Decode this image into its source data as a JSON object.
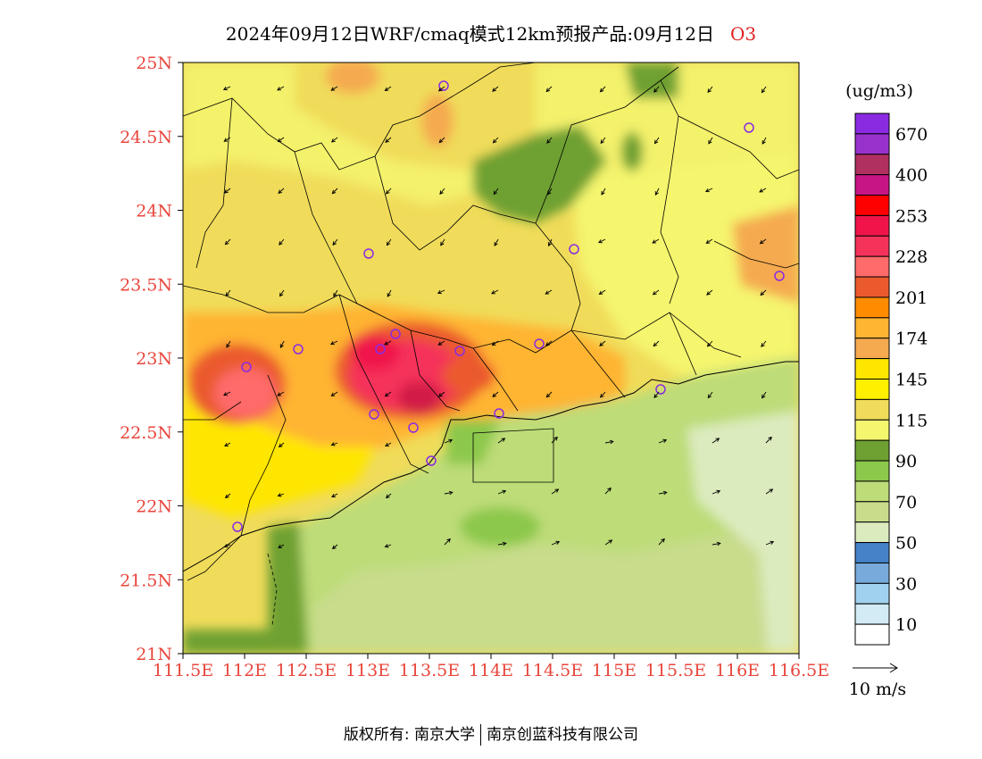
{
  "title": "2024年09月12日WRF/cmaq模式12km预报产品:09月12日",
  "pollutant": "O3",
  "map": {
    "lat_ticks": [
      "25N",
      "24.5N",
      "24N",
      "23.5N",
      "23N",
      "22.5N",
      "22N",
      "21.5N",
      "21N"
    ],
    "lon_ticks": [
      "111.5E",
      "112E",
      "112.5E",
      "113E",
      "113.5E",
      "114E",
      "114.5E",
      "115E",
      "115.5E",
      "116E",
      "116.5E"
    ]
  },
  "legend": {
    "unit": "(ug/m3)",
    "colors": [
      "#8a2be2",
      "#9932cc",
      "#b03060",
      "#c71585",
      "#ff0000",
      "#f0144b",
      "#f5325a",
      "#ff6a6a",
      "#eb5a2d",
      "#ff8c00",
      "#ffb432",
      "#f5aa50",
      "#ffe600",
      "#fff000",
      "#f0dc5a",
      "#f5f56e",
      "#6ea032",
      "#8cc84b",
      "#bedc78",
      "#c8dc8c",
      "#dcebbe",
      "#4682c8",
      "#78aadc",
      "#a0d2f0",
      "#d2ebf5",
      "#ffffff"
    ],
    "labels": [
      "670",
      "400",
      "253",
      "228",
      "201",
      "174",
      "145",
      "115",
      "90",
      "70",
      "50",
      "30",
      "10"
    ]
  },
  "wind_scale": "10 m/s",
  "footer": {
    "left": "版权所有: 南京大学",
    "right": "南京创蓝科技有限公司"
  }
}
